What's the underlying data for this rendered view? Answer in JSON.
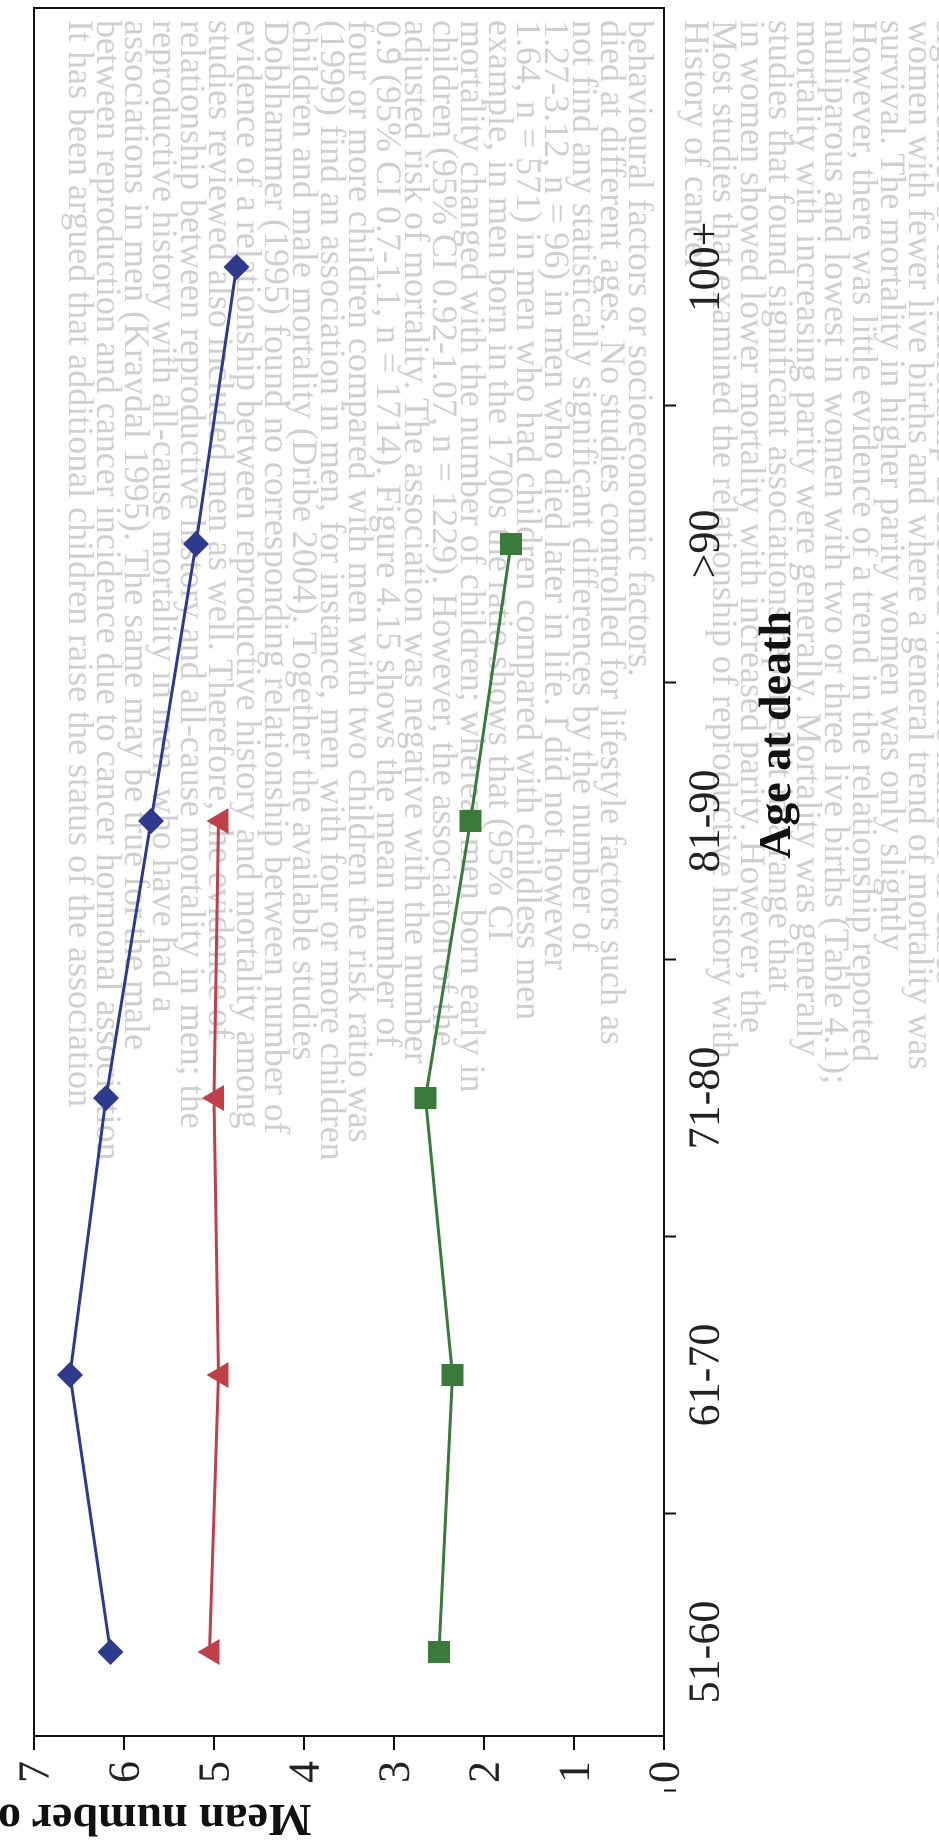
{
  "chart_data": {
    "type": "line",
    "orientation": "rotated-90-clockwise",
    "categories": [
      "51-60",
      "61-70",
      "71-80",
      "81-90",
      ">90",
      "100+"
    ],
    "xlabel": "Age at death",
    "ylabel": "Mean number of children",
    "ylim": [
      0,
      7
    ],
    "yticks": [
      "0",
      "1",
      "2",
      "3",
      "4",
      "5",
      "6",
      "7"
    ],
    "grid": false,
    "series": [
      {
        "values": [
          6.15,
          6.6,
          6.2,
          5.7,
          5.2,
          4.75
        ],
        "color": "#2e3a8c",
        "marker": "diamond"
      },
      {
        "values": [
          5.05,
          4.95,
          5.0,
          4.95,
          null,
          null
        ],
        "color": "#c0404a",
        "marker": "triangle"
      },
      {
        "values": [
          2.5,
          2.35,
          2.65,
          2.15,
          1.7,
          null
        ],
        "color": "#3a7a3a",
        "marker": "square"
      }
    ]
  },
  "background_text": [
    "It has been argued that additional children raise the status of the association",
    "between reproduction and cancer incidence due to cancer hormonal association",
    "associations in men (Kravdal 1995). The same may be true for the male",
    "reproductive history with all-cause mortality in men, who have had a",
    "relationship between reproductive history and all-cause mortality in men; the",
    "studies reviewed also included men as well. Therefore, the evidence of",
    "evidence of a relationship between reproductive history and mortality among",
    "Doblhammer (1995) found no corresponding relationship between number of",
    "children and male mortality (Dribe 2004). Together the available studies",
    "(1999) find an association in men, for instance, men with four or more children",
    "four or more children compared with men with two children the risk ratio was",
    "0.9 (95% CI 0.7-1.1, n = 1714). Figure 4.15 shows the mean number of",
    "adjusted risk of mortality. The association was negative with the number",
    "children (95% CI 0.92-1.07, n = 1229). However, the association of the",
    "mortality changed with the number of children; whereas men born early in",
    "example, in men born in the 1700s the ratio shows that (95% CI",
    "1.64, n = 571) in men who had children compared with childless men",
    "1.27-3.12, n = 96) in men who died later in life. I did not however",
    "not find any statistically significant differences by the number of",
    "died at different ages. No studies controlled for lifestyle factors such as",
    "behavioural factors or socioeconomic factors.",
    "",
    "History of cancer",
    "Most studies that examined the relationship of reproductive history with",
    "in women showed lower mortality with increased parity. However, the",
    "studies that found significant associations reported it in a range that",
    "mortality with increasing parity were generally. Mortality was generally",
    "nulliparous and lowest in women with two or three live births (Table 4.1);",
    "However, there was little evidence of a trend in the relationship reported",
    "survival. The mortality in higher parity women was only slightly",
    "women with fewer live births and where a general trend of mortality was",
    "significance of the relationship decreased with the number of cases"
  ]
}
